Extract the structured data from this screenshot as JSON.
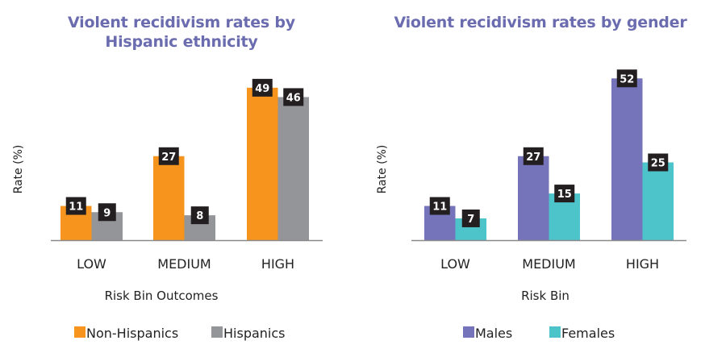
{
  "chart_data": [
    {
      "type": "bar",
      "title": "Violent recidivism rates by Hispanic ethnicity",
      "title_lines": [
        "Violent recidivism rates by",
        "Hispanic ethnicity"
      ],
      "xlabel": "Risk Bin Outcomes",
      "ylabel": "Rate (%)",
      "categories": [
        "LOW",
        "MEDIUM",
        "HIGH"
      ],
      "series": [
        {
          "name": "Non-Hispanics",
          "color": "#f7941d",
          "values": [
            11,
            27,
            49
          ]
        },
        {
          "name": "Hispanics",
          "color": "#939598",
          "values": [
            9,
            8,
            46
          ]
        }
      ],
      "ylim": [
        0,
        55
      ],
      "grid": false,
      "legend_position": "bottom",
      "data_labels": true
    },
    {
      "type": "bar",
      "title": "Violent recidivism rates by gender",
      "title_lines": [
        "Violent recidivism rates by gender"
      ],
      "xlabel": "Risk Bin",
      "ylabel": "Rate (%)",
      "categories": [
        "LOW",
        "MEDIUM",
        "HIGH"
      ],
      "series": [
        {
          "name": "Males",
          "color": "#7574ba",
          "values": [
            11,
            27,
            52
          ]
        },
        {
          "name": "Females",
          "color": "#4dc3ca",
          "values": [
            7,
            15,
            25
          ]
        }
      ],
      "ylim": [
        0,
        55
      ],
      "grid": false,
      "legend_position": "bottom",
      "data_labels": true
    }
  ],
  "colors": {
    "title": "#6b6bb0",
    "label_box": "#231f20",
    "axis": "#8a8a8a"
  }
}
